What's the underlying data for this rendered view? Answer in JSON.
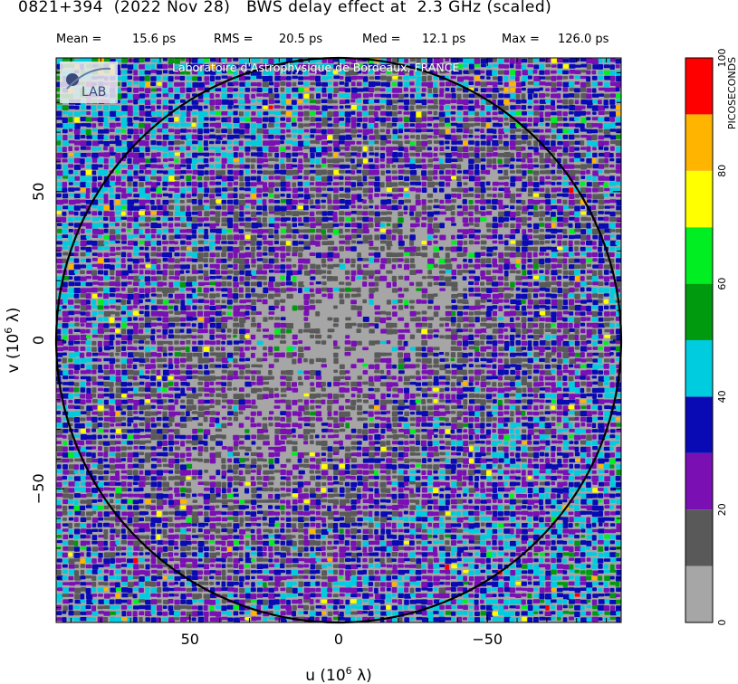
{
  "header": {
    "title": "0821+394  (2022 Nov 28)   BWS delay effect at  2.3 GHz (scaled)",
    "stats": [
      {
        "label": "Mean =",
        "value": "15.6 ps"
      },
      {
        "label": "RMS =",
        "value": "20.5 ps"
      },
      {
        "label": "Med =",
        "value": "12.1 ps"
      },
      {
        "label": "Max =",
        "value": "126.0 ps"
      }
    ]
  },
  "credit": "Laboratoire d'Astrophysique de Bordeaux, FRANCE",
  "logo_text": "LAB",
  "chart_data": {
    "type": "heatmap",
    "title": "0821+394  (2022 Nov 28)   BWS delay effect at  2.3 GHz (scaled)",
    "xlabel": "u  (10^6 λ)",
    "ylabel": "v  (10^6 λ)",
    "xlim": [
      95,
      -95
    ],
    "ylim": [
      -95,
      95
    ],
    "x_ticks": [
      50,
      0,
      -50
    ],
    "x_tick_labels": [
      "50",
      "0",
      "−50"
    ],
    "y_ticks": [
      -50,
      0,
      50
    ],
    "y_tick_labels": [
      "−50",
      "0",
      "50"
    ],
    "circle_radius": 95,
    "colorbar": {
      "label": "PICOSECONDS",
      "min": 0,
      "max": 100,
      "ticks": [
        0,
        20,
        40,
        60,
        80,
        100
      ],
      "bins": [
        {
          "range": [
            0,
            10
          ],
          "color": "#a6a6a6"
        },
        {
          "range": [
            10,
            20
          ],
          "color": "#595959"
        },
        {
          "range": [
            20,
            30
          ],
          "color": "#7a0fb4"
        },
        {
          "range": [
            30,
            40
          ],
          "color": "#0a0ab4"
        },
        {
          "range": [
            40,
            50
          ],
          "color": "#00cce0"
        },
        {
          "range": [
            50,
            60
          ],
          "color": "#009a0f"
        },
        {
          "range": [
            60,
            70
          ],
          "color": "#00ee22"
        },
        {
          "range": [
            70,
            80
          ],
          "color": "#ffff00"
        },
        {
          "range": [
            80,
            90
          ],
          "color": "#ffb400"
        },
        {
          "range": [
            90,
            100
          ],
          "color": "#ff0000"
        }
      ]
    },
    "stats": {
      "mean_ps": 15.6,
      "rms_ps": 20.5,
      "median_ps": 12.1,
      "max_ps": 126.0
    }
  }
}
